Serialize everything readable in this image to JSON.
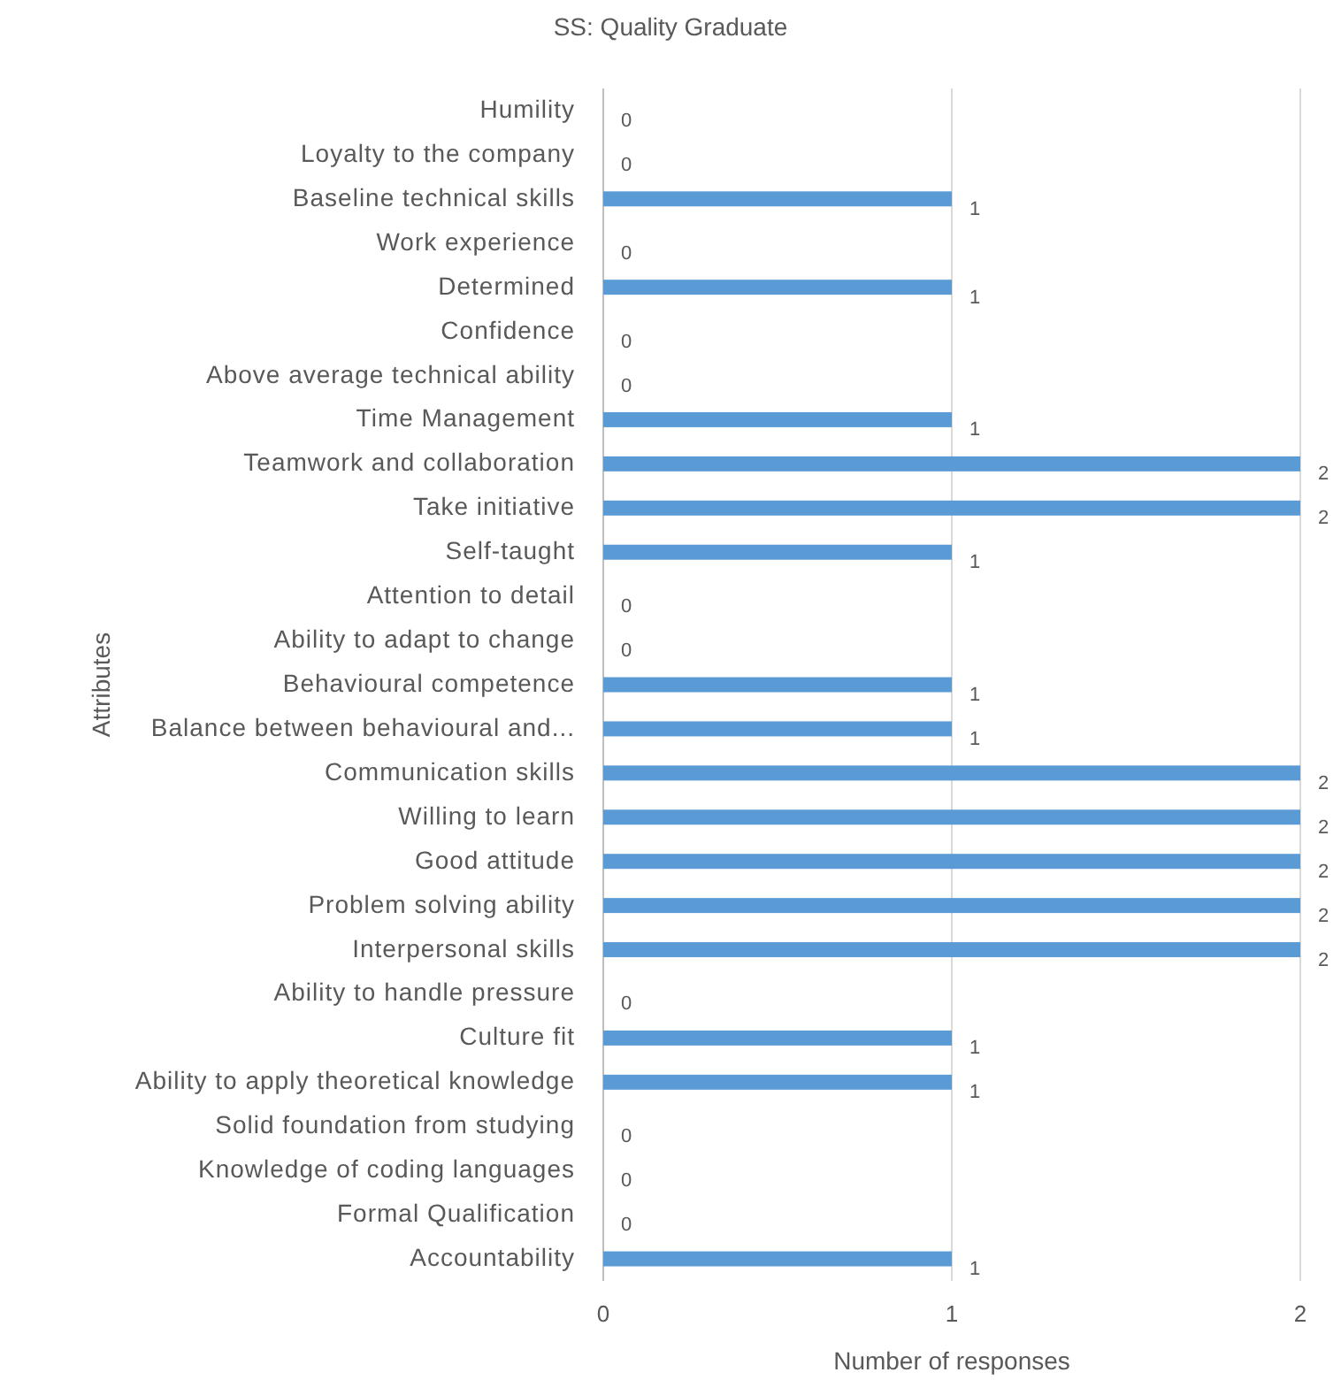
{
  "chart_data": {
    "type": "bar",
    "orientation": "horizontal",
    "title": "SS: Quality Graduate",
    "xlabel": "Number of responses",
    "ylabel": "Attributes",
    "categories": [
      "Humility",
      "Loyalty to the company",
      "Baseline technical skills",
      "Work experience",
      "Determined",
      "Confidence",
      "Above average technical ability",
      "Time Management",
      "Teamwork and collaboration",
      "Take initiative",
      "Self-taught",
      "Attention to detail",
      "Ability to adapt to change",
      "Behavioural competence",
      "Balance between behavioural and...",
      "Communication skills",
      "Willing to learn",
      "Good attitude",
      "Problem solving ability",
      "Interpersonal skills",
      "Ability to handle pressure",
      "Culture fit",
      "Ability to apply theoretical knowledge",
      "Solid foundation from studying",
      "Knowledge of coding languages",
      "Formal Qualification",
      "Accountability"
    ],
    "values": [
      0,
      0,
      1,
      0,
      1,
      0,
      0,
      1,
      2,
      2,
      1,
      0,
      0,
      1,
      1,
      2,
      2,
      2,
      2,
      2,
      0,
      1,
      1,
      0,
      0,
      0,
      1
    ],
    "color": "#5b9bd5",
    "xlim": [
      0,
      2
    ],
    "xticks": [
      0,
      1,
      2
    ],
    "grid": "x",
    "data_labels": true
  }
}
